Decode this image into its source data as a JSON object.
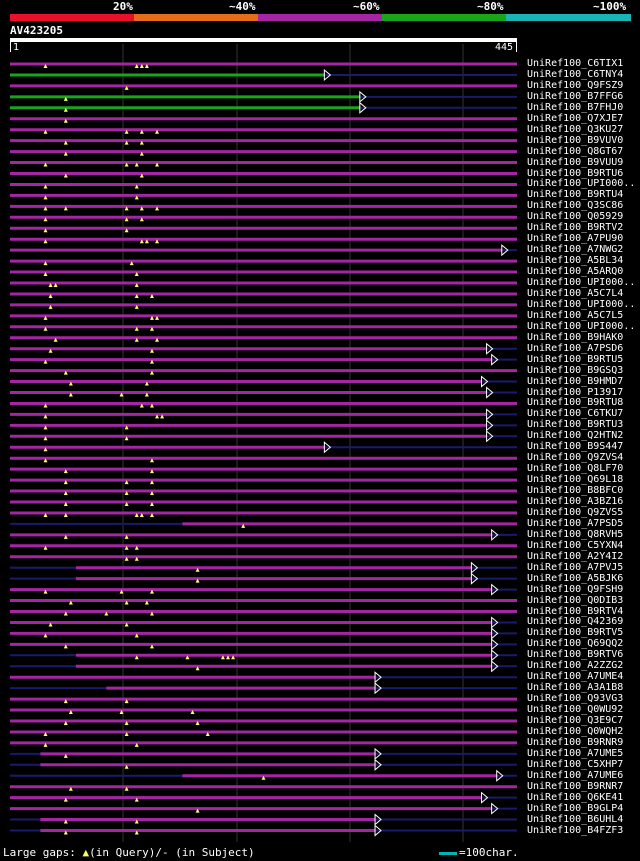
{
  "identity_legend": {
    "segments": [
      {
        "label": "20%",
        "color": "#e8102a"
      },
      {
        "label": "~40%",
        "color": "#e46c1a"
      },
      {
        "label": "~60%",
        "color": "#a426a4"
      },
      {
        "label": "~80%",
        "color": "#1aa41a"
      },
      {
        "label": "~100%",
        "color": "#1ab4b4"
      }
    ]
  },
  "query": {
    "id": "AV423205",
    "start": "1",
    "end": "445"
  },
  "colors": {
    "magenta": "#a426a4",
    "green": "#1aa41a",
    "navy": "#1a1a6e",
    "cyan": "#00b4b4",
    "marker": "#ffff66"
  },
  "hits": [
    {
      "label": "UniRef100_C6TIX1",
      "color": "magenta",
      "gaps": [
        0.07,
        0.25,
        0.26,
        0.27
      ]
    },
    {
      "label": "UniRef100_C6TNY4",
      "color": "green",
      "arrow": true,
      "end": 0.62,
      "gaps": []
    },
    {
      "label": "UniRef100_Q9FSZ9",
      "color": "magenta",
      "gaps": [
        0.23
      ]
    },
    {
      "label": "UniRef100_B7FFG6",
      "color": "green",
      "arrow": true,
      "end": 0.69,
      "gaps": [
        0.11
      ]
    },
    {
      "label": "UniRef100_B7FHJ0",
      "color": "green",
      "arrow": true,
      "end": 0.69,
      "gaps": [
        0.11
      ]
    },
    {
      "label": "UniRef100_Q7XJE7",
      "color": "magenta",
      "gaps": [
        0.11
      ]
    },
    {
      "label": "UniRef100_Q3KU27",
      "color": "magenta",
      "gaps": [
        0.07,
        0.23,
        0.26,
        0.29
      ]
    },
    {
      "label": "UniRef100_B9VUV0",
      "color": "magenta",
      "gaps": [
        0.11,
        0.23,
        0.26
      ]
    },
    {
      "label": "UniRef100_Q8GT67",
      "color": "magenta",
      "gaps": [
        0.11,
        0.26
      ]
    },
    {
      "label": "UniRef100_B9VUU9",
      "color": "magenta",
      "gaps": [
        0.07,
        0.23,
        0.25,
        0.29
      ]
    },
    {
      "label": "UniRef100_B9RTU6",
      "color": "magenta",
      "gaps": [
        0.11,
        0.26
      ]
    },
    {
      "label": "UniRef100_UPI000..",
      "color": "magenta",
      "gaps": [
        0.07,
        0.25
      ]
    },
    {
      "label": "UniRef100_B9RTU4",
      "color": "magenta",
      "gaps": [
        0.07,
        0.25
      ]
    },
    {
      "label": "UniRef100_Q3SC86",
      "color": "magenta",
      "gaps": [
        0.07,
        0.11,
        0.23,
        0.26,
        0.29
      ]
    },
    {
      "label": "UniRef100_Q05929",
      "color": "magenta",
      "gaps": [
        0.07,
        0.23,
        0.26
      ]
    },
    {
      "label": "UniRef100_B9RTV2",
      "color": "magenta",
      "gaps": [
        0.07,
        0.23
      ]
    },
    {
      "label": "UniRef100_A7PU90",
      "color": "magenta",
      "gaps": [
        0.07,
        0.26,
        0.27,
        0.29
      ]
    },
    {
      "label": "UniRef100_A7NWG2",
      "color": "magenta",
      "arrow": true,
      "end": 0.97,
      "gaps": []
    },
    {
      "label": "UniRef100_A5BL34",
      "color": "magenta",
      "gaps": [
        0.07,
        0.24
      ]
    },
    {
      "label": "UniRef100_A5ARQ0",
      "color": "magenta",
      "gaps": [
        0.07,
        0.25
      ]
    },
    {
      "label": "UniRef100_UPI000..",
      "color": "magenta",
      "gaps": [
        0.08,
        0.09,
        0.25
      ]
    },
    {
      "label": "UniRef100_A5C7L4",
      "color": "magenta",
      "gaps": [
        0.08,
        0.25,
        0.28
      ]
    },
    {
      "label": "UniRef100_UPI000..",
      "color": "magenta",
      "gaps": [
        0.08,
        0.25
      ]
    },
    {
      "label": "UniRef100_A5C7L5",
      "color": "magenta",
      "gaps": [
        0.07,
        0.28,
        0.29
      ]
    },
    {
      "label": "UniRef100_UPI000..",
      "color": "magenta",
      "gaps": [
        0.07,
        0.25,
        0.28
      ]
    },
    {
      "label": "UniRef100_B9HAK0",
      "color": "magenta",
      "gaps": [
        0.09,
        0.25,
        0.29
      ]
    },
    {
      "label": "UniRef100_A7PSD6",
      "color": "magenta",
      "arrow": true,
      "end": 0.94,
      "gaps": [
        0.08,
        0.28
      ]
    },
    {
      "label": "UniRef100_B9RTU5",
      "color": "magenta",
      "arrow": true,
      "end": 0.95,
      "gaps": [
        0.07,
        0.28
      ]
    },
    {
      "label": "UniRef100_B9GSQ3",
      "color": "magenta",
      "gaps": [
        0.11,
        0.28
      ]
    },
    {
      "label": "UniRef100_B9HMD7",
      "color": "magenta",
      "arrow": true,
      "end": 0.93,
      "gaps": [
        0.12,
        0.27
      ]
    },
    {
      "label": "UniRef100_P13917",
      "color": "magenta",
      "arrow": true,
      "end": 0.94,
      "gaps": [
        0.12,
        0.22,
        0.27
      ]
    },
    {
      "label": "UniRef100_B9RTU8",
      "color": "magenta",
      "gaps": [
        0.07,
        0.26,
        0.28
      ]
    },
    {
      "label": "UniRef100_C6TKU7",
      "color": "magenta",
      "arrow": true,
      "end": 0.94,
      "gaps": [
        0.07,
        0.29,
        0.3
      ]
    },
    {
      "label": "UniRef100_B9RTU3",
      "color": "magenta",
      "arrow": true,
      "end": 0.94,
      "gaps": [
        0.07,
        0.23
      ]
    },
    {
      "label": "UniRef100_Q2HTN2",
      "color": "magenta",
      "arrow": true,
      "end": 0.94,
      "gaps": [
        0.07,
        0.23
      ]
    },
    {
      "label": "UniRef100_B9S447",
      "color": "magenta",
      "arrow": true,
      "end": 0.62,
      "gaps": [
        0.07
      ]
    },
    {
      "label": "UniRef100_Q9ZVS4",
      "color": "magenta",
      "gaps": [
        0.07,
        0.28
      ]
    },
    {
      "label": "UniRef100_Q8LF70",
      "color": "magenta",
      "gaps": [
        0.11,
        0.28
      ]
    },
    {
      "label": "UniRef100_Q69L18",
      "color": "magenta",
      "gaps": [
        0.11,
        0.23,
        0.28
      ]
    },
    {
      "label": "UniRef100_B8BFC0",
      "color": "magenta",
      "gaps": [
        0.11,
        0.23,
        0.28
      ]
    },
    {
      "label": "UniRef100_A3BZ16",
      "color": "magenta",
      "gaps": [
        0.11,
        0.23,
        0.28
      ]
    },
    {
      "label": "UniRef100_Q9ZVS5",
      "color": "magenta",
      "gaps": [
        0.07,
        0.11,
        0.25,
        0.26,
        0.28
      ]
    },
    {
      "label": "UniRef100_A7PSD5",
      "color": "magenta",
      "start": 0.34,
      "gaps": [
        0.46
      ]
    },
    {
      "label": "UniRef100_Q8RVH5",
      "color": "magenta",
      "arrow": true,
      "end": 0.95,
      "gaps": [
        0.11,
        0.23
      ]
    },
    {
      "label": "UniRef100_C5YXN4",
      "color": "magenta",
      "gaps": [
        0.07,
        0.23,
        0.25
      ]
    },
    {
      "label": "UniRef100_A2Y4I2",
      "color": "magenta",
      "gaps": [
        0.23,
        0.25
      ]
    },
    {
      "label": "UniRef100_A7PVJ5",
      "color": "magenta",
      "start": 0.13,
      "arrow": true,
      "end": 0.91,
      "gaps": [
        0.37
      ]
    },
    {
      "label": "UniRef100_A5BJK6",
      "color": "magenta",
      "start": 0.13,
      "arrow": true,
      "end": 0.91,
      "gaps": [
        0.37
      ]
    },
    {
      "label": "UniRef100_Q9FSH9",
      "color": "magenta",
      "arrow": true,
      "end": 0.95,
      "gaps": [
        0.07,
        0.22,
        0.28
      ]
    },
    {
      "label": "UniRef100_Q0DIB3",
      "color": "magenta",
      "gaps": [
        0.12,
        0.23,
        0.27
      ]
    },
    {
      "label": "UniRef100_B9RTV4",
      "color": "magenta",
      "gaps": [
        0.11,
        0.19,
        0.28
      ]
    },
    {
      "label": "UniRef100_Q42369",
      "color": "magenta",
      "arrow": true,
      "end": 0.95,
      "gaps": [
        0.08,
        0.23
      ]
    },
    {
      "label": "UniRef100_B9RTV5",
      "color": "magenta",
      "arrow": true,
      "end": 0.95,
      "gaps": [
        0.07,
        0.25
      ]
    },
    {
      "label": "UniRef100_Q69QQ2",
      "color": "magenta",
      "arrow": true,
      "end": 0.95,
      "gaps": [
        0.11,
        0.28
      ]
    },
    {
      "label": "UniRef100_B9RTV6",
      "color": "magenta",
      "arrow": true,
      "end": 0.95,
      "start": 0.13,
      "gaps": [
        0.25,
        0.35,
        0.42,
        0.43,
        0.44
      ]
    },
    {
      "label": "UniRef100_A2ZZG2",
      "color": "magenta",
      "arrow": true,
      "end": 0.95,
      "start": 0.13,
      "gaps": [
        0.37
      ]
    },
    {
      "label": "UniRef100_A7UME4",
      "color": "magenta",
      "arrow": true,
      "end": 0.72,
      "gaps": []
    },
    {
      "label": "UniRef100_A3A1B8",
      "color": "magenta",
      "arrow": true,
      "end": 0.72,
      "start": 0.19,
      "gaps": []
    },
    {
      "label": "UniRef100_Q93VG3",
      "color": "magenta",
      "gaps": [
        0.11,
        0.23
      ]
    },
    {
      "label": "UniRef100_Q0WU92",
      "color": "magenta",
      "gaps": [
        0.12,
        0.22,
        0.36
      ]
    },
    {
      "label": "UniRef100_Q3E9C7",
      "color": "magenta",
      "gaps": [
        0.11,
        0.23,
        0.37
      ]
    },
    {
      "label": "UniRef100_Q0WQH2",
      "color": "magenta",
      "gaps": [
        0.07,
        0.23,
        0.39
      ]
    },
    {
      "label": "UniRef100_B9RNR9",
      "color": "magenta",
      "gaps": [
        0.07,
        0.25
      ]
    },
    {
      "label": "UniRef100_A7UME5",
      "color": "magenta",
      "arrow": true,
      "end": 0.72,
      "start": 0.06,
      "gaps": [
        0.11
      ]
    },
    {
      "label": "UniRef100_C5XHP7",
      "color": "magenta",
      "arrow": true,
      "end": 0.72,
      "start": 0.06,
      "gaps": [
        0.23
      ]
    },
    {
      "label": "UniRef100_A7UME6",
      "color": "magenta",
      "arrow": true,
      "end": 0.96,
      "start": 0.34,
      "gaps": [
        0.5
      ]
    },
    {
      "label": "UniRef100_B9RNR7",
      "color": "magenta",
      "gaps": [
        0.12,
        0.23
      ]
    },
    {
      "label": "UniRef100_Q6KE41",
      "color": "magenta",
      "arrow": true,
      "end": 0.93,
      "gaps": [
        0.11,
        0.25
      ]
    },
    {
      "label": "UniRef100_B9GLP4",
      "color": "magenta",
      "arrow": true,
      "end": 0.95,
      "gaps": [
        0.37
      ]
    },
    {
      "label": "UniRef100_B6UHL4",
      "color": "magenta",
      "arrow": true,
      "end": 0.72,
      "start": 0.06,
      "gaps": [
        0.11,
        0.25
      ]
    },
    {
      "label": "UniRef100_B4FZF3",
      "color": "magenta",
      "arrow": true,
      "end": 0.72,
      "start": 0.06,
      "gaps": [
        0.11,
        0.25
      ]
    }
  ],
  "footer": {
    "large_gaps": "Large gaps:",
    "in_query": "(in Query)/- (in Subject)",
    "scale": "=100char."
  }
}
